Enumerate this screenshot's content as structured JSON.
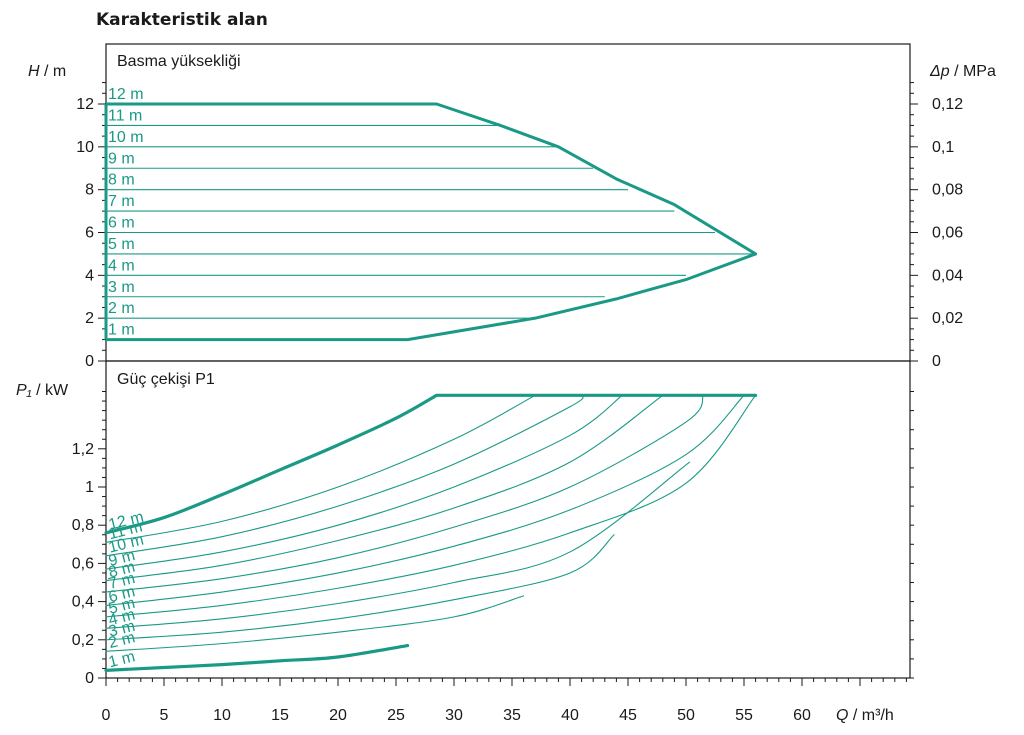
{
  "title": "Karakteristik alan",
  "colors": {
    "curve": "#1a9a86",
    "axis": "#1a1a1a",
    "grid": "#1a1a1a"
  },
  "chart_data": [
    {
      "panel": "head",
      "type": "line",
      "title": "Basma yüksekliği",
      "ylabel": "H / m",
      "ylabel_var": "H",
      "ylabel_unit": "/ m",
      "y2label_var": "Δp",
      "y2label_unit": "/ MPa",
      "xlim": [
        0,
        70
      ],
      "ylim": [
        0,
        13
      ],
      "yticks": [
        0,
        2,
        4,
        6,
        8,
        10,
        12
      ],
      "y2ticks": [
        {
          "value": 0,
          "label": "0"
        },
        {
          "value": 2,
          "label": "0,02"
        },
        {
          "value": 4,
          "label": "0,04"
        },
        {
          "value": 6,
          "label": "0,06"
        },
        {
          "value": 8,
          "label": "0,08"
        },
        {
          "value": 10,
          "label": "0,1"
        },
        {
          "value": 12,
          "label": "0,12"
        }
      ],
      "envelope": [
        [
          0,
          12
        ],
        [
          28.5,
          12
        ],
        [
          34,
          11
        ],
        [
          39,
          10
        ],
        [
          44,
          8.5
        ],
        [
          49,
          7.3
        ],
        [
          56,
          5
        ],
        [
          50,
          3.8
        ],
        [
          44,
          2.9
        ],
        [
          37,
          2.0
        ],
        [
          26,
          1
        ],
        [
          0,
          1
        ]
      ],
      "series": [
        {
          "name": "12 m",
          "head": 12,
          "x_end": 28.5
        },
        {
          "name": "11 m",
          "head": 11,
          "x_end": 34
        },
        {
          "name": "10 m",
          "head": 10,
          "x_end": 39
        },
        {
          "name": "9 m",
          "head": 9,
          "x_end": 42
        },
        {
          "name": "8 m",
          "head": 8,
          "x_end": 45
        },
        {
          "name": "7 m",
          "head": 7,
          "x_end": 49
        },
        {
          "name": "6 m",
          "head": 6,
          "x_end": 52.5
        },
        {
          "name": "5 m",
          "head": 5,
          "x_end": 56
        },
        {
          "name": "4 m",
          "head": 4,
          "x_end": 50
        },
        {
          "name": "3 m",
          "head": 3,
          "x_end": 43
        },
        {
          "name": "2 m",
          "head": 2,
          "x_end": 37
        },
        {
          "name": "1 m",
          "head": 1,
          "x_end": 26
        }
      ]
    },
    {
      "panel": "power",
      "type": "line",
      "title": "Güç çekişi P1",
      "ylabel": "P₁ / kW",
      "ylabel_var": "P₁",
      "ylabel_unit": "/ kW",
      "xlabel": "Q / m³/h",
      "xlabel_var": "Q",
      "xlabel_unit": "/ m³/h",
      "xlim": [
        0,
        70
      ],
      "xticks": [
        0,
        5,
        10,
        15,
        20,
        25,
        30,
        35,
        40,
        45,
        50,
        55,
        60
      ],
      "ylim": [
        0,
        1.55
      ],
      "yticks": [
        {
          "value": 0,
          "label": "0"
        },
        {
          "value": 0.2,
          "label": "0,2"
        },
        {
          "value": 0.4,
          "label": "0,4"
        },
        {
          "value": 0.6,
          "label": "0,6"
        },
        {
          "value": 0.8,
          "label": "0,8"
        },
        {
          "value": 1.0,
          "label": "1"
        },
        {
          "value": 1.2,
          "label": "1,2"
        }
      ],
      "series": [
        {
          "name": "12 m",
          "bold": true,
          "points": [
            [
              0,
              0.76
            ],
            [
              5,
              0.84
            ],
            [
              10,
              0.96
            ],
            [
              15,
              1.09
            ],
            [
              20,
              1.22
            ],
            [
              25,
              1.36
            ],
            [
              28.5,
              1.48
            ],
            [
              56,
              1.48
            ]
          ]
        },
        {
          "name": "11 m",
          "points": [
            [
              0,
              0.71
            ],
            [
              10,
              0.82
            ],
            [
              20,
              1.0
            ],
            [
              30,
              1.25
            ],
            [
              37,
              1.48
            ]
          ]
        },
        {
          "name": "10 m",
          "points": [
            [
              0,
              0.64
            ],
            [
              10,
              0.74
            ],
            [
              20,
              0.9
            ],
            [
              30,
              1.12
            ],
            [
              40,
              1.42
            ],
            [
              41,
              1.48
            ]
          ]
        },
        {
          "name": "9 m",
          "points": [
            [
              0,
              0.57
            ],
            [
              10,
              0.66
            ],
            [
              20,
              0.8
            ],
            [
              30,
              1.0
            ],
            [
              40,
              1.27
            ],
            [
              44.5,
              1.48
            ]
          ]
        },
        {
          "name": "8 m",
          "points": [
            [
              0,
              0.51
            ],
            [
              10,
              0.59
            ],
            [
              20,
              0.72
            ],
            [
              30,
              0.89
            ],
            [
              40,
              1.13
            ],
            [
              48,
              1.48
            ]
          ]
        },
        {
          "name": "7 m",
          "points": [
            [
              0,
              0.45
            ],
            [
              10,
              0.52
            ],
            [
              20,
              0.63
            ],
            [
              30,
              0.79
            ],
            [
              40,
              1.0
            ],
            [
              50,
              1.34
            ],
            [
              51.5,
              1.48
            ]
          ]
        },
        {
          "name": "6 m",
          "points": [
            [
              0,
              0.38
            ],
            [
              10,
              0.45
            ],
            [
              20,
              0.55
            ],
            [
              30,
              0.69
            ],
            [
              40,
              0.88
            ],
            [
              50,
              1.17
            ],
            [
              55,
              1.48
            ]
          ]
        },
        {
          "name": "5 m",
          "points": [
            [
              0,
              0.32
            ],
            [
              10,
              0.38
            ],
            [
              20,
              0.47
            ],
            [
              30,
              0.59
            ],
            [
              40,
              0.76
            ],
            [
              50,
              1.02
            ],
            [
              56,
              1.48
            ]
          ]
        },
        {
          "name": "4 m",
          "points": [
            [
              0,
              0.26
            ],
            [
              10,
              0.31
            ],
            [
              20,
              0.39
            ],
            [
              30,
              0.5
            ],
            [
              40,
              0.66
            ],
            [
              50.3,
              1.13
            ]
          ]
        },
        {
          "name": "3 m",
          "points": [
            [
              0,
              0.2
            ],
            [
              10,
              0.24
            ],
            [
              20,
              0.31
            ],
            [
              30,
              0.41
            ],
            [
              40,
              0.55
            ],
            [
              43.8,
              0.75
            ]
          ]
        },
        {
          "name": "2 m",
          "points": [
            [
              0,
              0.14
            ],
            [
              10,
              0.18
            ],
            [
              20,
              0.24
            ],
            [
              30,
              0.32
            ],
            [
              36,
              0.43
            ]
          ]
        },
        {
          "name": "1 m",
          "bold": true,
          "points": [
            [
              0,
              0.04
            ],
            [
              5,
              0.055
            ],
            [
              10,
              0.07
            ],
            [
              15,
              0.09
            ],
            [
              20,
              0.11
            ],
            [
              26,
              0.17
            ]
          ]
        }
      ]
    }
  ]
}
